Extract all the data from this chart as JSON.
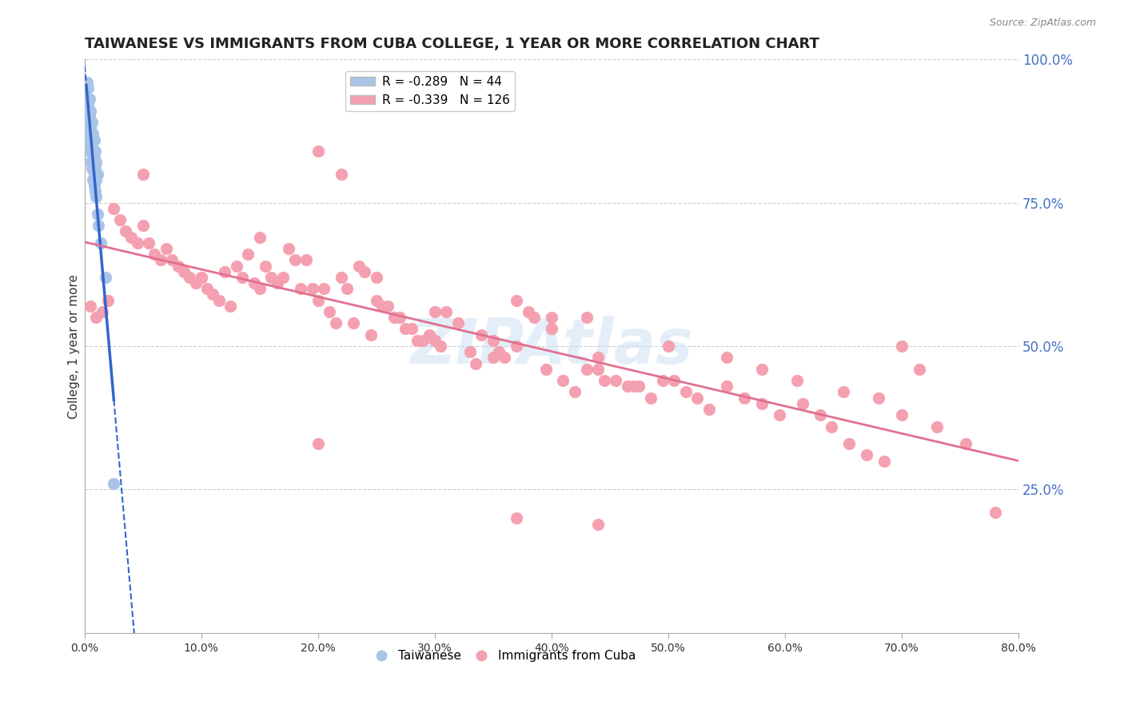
{
  "title": "TAIWANESE VS IMMIGRANTS FROM CUBA COLLEGE, 1 YEAR OR MORE CORRELATION CHART",
  "source": "Source: ZipAtlas.com",
  "ylabel": "College, 1 year or more",
  "xlim": [
    0.0,
    80.0
  ],
  "ylim": [
    0.0,
    100.0
  ],
  "xticks": [
    0.0,
    10.0,
    20.0,
    30.0,
    40.0,
    50.0,
    60.0,
    70.0,
    80.0
  ],
  "xtick_labels": [
    "0.0%",
    "10.0%",
    "20.0%",
    "30.0%",
    "40.0%",
    "50.0%",
    "60.0%",
    "70.0%",
    "80.0%"
  ],
  "ytick_labels_right": [
    "25.0%",
    "50.0%",
    "75.0%",
    "100.0%"
  ],
  "ytick_vals_right": [
    25.0,
    50.0,
    75.0,
    100.0
  ],
  "legend_r_n": [
    {
      "R": "-0.289",
      "N": "44",
      "color": "#aac4e8"
    },
    {
      "R": "-0.339",
      "N": "126",
      "color": "#f4a0b0"
    }
  ],
  "legend_labels_bottom": [
    "Taiwanese",
    "Immigrants from Cuba"
  ],
  "taiwanese_color": "#aac4e8",
  "cuba_color": "#f4a0b0",
  "taiwanese_line_color": "#3366cc",
  "cuba_line_color": "#e07090",
  "grid_color": "#cccccc",
  "background_color": "#ffffff",
  "watermark": "ZIPAtlas",
  "title_fontsize": 13,
  "axis_label_fontsize": 11,
  "tick_fontsize": 10,
  "legend_fontsize": 11,
  "taiwanese_x": [
    0.15,
    0.2,
    0.2,
    0.2,
    0.2,
    0.2,
    0.3,
    0.3,
    0.3,
    0.3,
    0.3,
    0.4,
    0.4,
    0.4,
    0.4,
    0.5,
    0.5,
    0.5,
    0.5,
    0.6,
    0.6,
    0.6,
    0.6,
    0.7,
    0.7,
    0.7,
    0.7,
    0.8,
    0.8,
    0.8,
    0.8,
    0.9,
    0.9,
    0.9,
    0.9,
    1.0,
    1.0,
    1.0,
    1.1,
    1.1,
    1.2,
    1.4,
    1.8,
    2.5
  ],
  "taiwanese_y": [
    95,
    96,
    93,
    91,
    89,
    87,
    95,
    93,
    92,
    89,
    86,
    93,
    90,
    87,
    84,
    91,
    88,
    85,
    82,
    89,
    86,
    84,
    81,
    87,
    84,
    82,
    79,
    86,
    83,
    80,
    78,
    84,
    81,
    79,
    77,
    82,
    79,
    76,
    80,
    73,
    71,
    68,
    62,
    26
  ],
  "cuba_x": [
    0.5,
    1.0,
    1.5,
    2.0,
    2.5,
    3.0,
    3.5,
    4.0,
    4.5,
    5.0,
    5.5,
    6.0,
    6.5,
    7.0,
    7.5,
    8.0,
    8.5,
    9.0,
    9.5,
    10.0,
    10.5,
    11.0,
    11.5,
    12.0,
    12.5,
    13.0,
    13.5,
    14.0,
    14.5,
    15.0,
    15.5,
    16.0,
    16.5,
    17.0,
    17.5,
    18.0,
    18.5,
    19.0,
    19.5,
    20.0,
    20.5,
    21.0,
    21.5,
    22.0,
    22.5,
    23.0,
    23.5,
    24.0,
    24.5,
    25.0,
    25.5,
    26.0,
    26.5,
    27.0,
    27.5,
    28.0,
    28.5,
    29.0,
    29.5,
    30.0,
    30.5,
    31.0,
    32.0,
    33.0,
    33.5,
    34.0,
    35.0,
    35.5,
    36.0,
    37.0,
    38.0,
    38.5,
    39.5,
    40.0,
    41.0,
    42.0,
    43.0,
    44.0,
    44.5,
    45.5,
    46.5,
    47.5,
    48.5,
    49.5,
    50.5,
    51.5,
    52.5,
    53.5,
    55.0,
    56.5,
    58.0,
    59.5,
    61.5,
    63.0,
    64.0,
    65.5,
    67.0,
    68.5,
    70.0,
    71.5,
    5.0,
    10.0,
    15.0,
    20.0,
    22.0,
    25.0,
    30.0,
    35.0,
    37.0,
    40.0,
    43.0,
    44.0,
    47.0,
    50.0,
    55.0,
    58.0,
    61.0,
    65.0,
    68.0,
    70.0,
    73.0,
    75.5,
    78.0,
    20.0,
    37.0,
    44.0
  ],
  "cuba_y": [
    57,
    55,
    56,
    58,
    74,
    72,
    70,
    69,
    68,
    71,
    68,
    66,
    65,
    67,
    65,
    64,
    63,
    62,
    61,
    62,
    60,
    59,
    58,
    63,
    57,
    64,
    62,
    66,
    61,
    60,
    64,
    62,
    61,
    62,
    67,
    65,
    60,
    65,
    60,
    58,
    60,
    56,
    54,
    62,
    60,
    54,
    64,
    63,
    52,
    58,
    57,
    57,
    55,
    55,
    53,
    53,
    51,
    51,
    52,
    51,
    50,
    56,
    54,
    49,
    47,
    52,
    51,
    49,
    48,
    58,
    56,
    55,
    46,
    55,
    44,
    42,
    46,
    46,
    44,
    44,
    43,
    43,
    41,
    44,
    44,
    42,
    41,
    39,
    43,
    41,
    40,
    38,
    40,
    38,
    36,
    33,
    31,
    30,
    50,
    46,
    80,
    62,
    69,
    84,
    80,
    62,
    56,
    48,
    50,
    53,
    55,
    48,
    43,
    50,
    48,
    46,
    44,
    42,
    41,
    38,
    36,
    33,
    21,
    33,
    20,
    19
  ]
}
